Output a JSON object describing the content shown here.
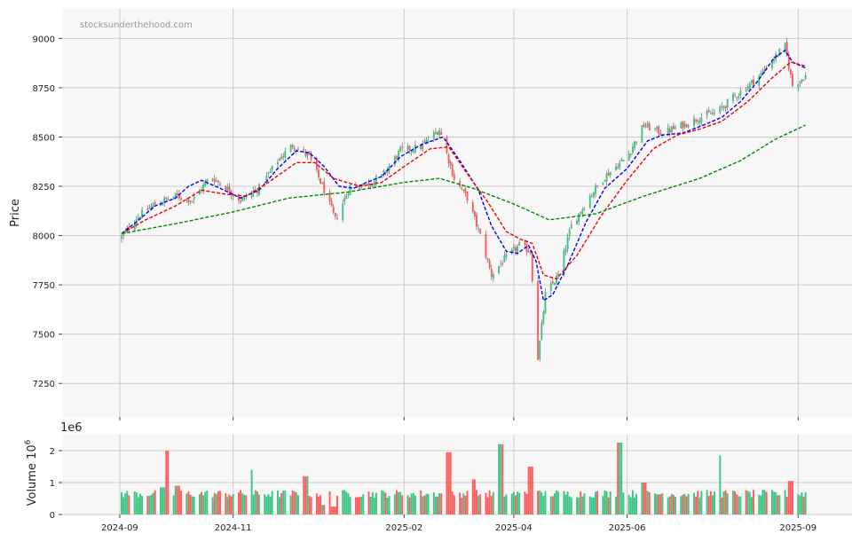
{
  "watermark": "stocksunderthehood.com",
  "colors": {
    "up": "#3cc483",
    "down": "#ff5a5a",
    "ma_fast": "#0000ee",
    "ma_mid": "#ee0000",
    "ma_slow": "#008800",
    "panel_bg": "#f7f7f7",
    "grid": "#cccccc"
  },
  "chart_data": [
    {
      "type": "line",
      "title": "",
      "ylabel": "Price",
      "ylim": [
        7080,
        9150
      ],
      "yticks": [
        9000,
        8750,
        8500,
        8250,
        8000,
        7750,
        7500,
        7250
      ],
      "x_tick_labels": [
        "2024-09",
        "2024-11",
        "2025-02",
        "2025-04",
        "2025-06",
        "2025-09"
      ],
      "x_range": [
        "2024-08-01",
        "2025-09-30"
      ],
      "grid": true,
      "candles": {
        "start_date": "2024-09-02",
        "end_date": "2025-09-05",
        "close_path": [
          [
            "2024-09-02",
            7990
          ],
          [
            "2024-09-10",
            8090
          ],
          [
            "2024-09-20",
            8160
          ],
          [
            "2024-10-01",
            8200
          ],
          [
            "2024-10-10",
            8180
          ],
          [
            "2024-10-20",
            8300
          ],
          [
            "2024-10-30",
            8230
          ],
          [
            "2024-11-05",
            8180
          ],
          [
            "2024-11-15",
            8240
          ],
          [
            "2024-11-25",
            8380
          ],
          [
            "2024-12-03",
            8460
          ],
          [
            "2024-12-12",
            8400
          ],
          [
            "2024-12-20",
            8230
          ],
          [
            "2024-12-26",
            8080
          ],
          [
            "2025-01-03",
            8250
          ],
          [
            "2025-01-12",
            8260
          ],
          [
            "2025-01-20",
            8300
          ],
          [
            "2025-01-30",
            8430
          ],
          [
            "2025-02-10",
            8450
          ],
          [
            "2025-02-20",
            8540
          ],
          [
            "2025-02-28",
            8290
          ],
          [
            "2025-03-07",
            8190
          ],
          [
            "2025-03-14",
            8000
          ],
          [
            "2025-03-20",
            7800
          ],
          [
            "2025-03-27",
            7880
          ],
          [
            "2025-04-04",
            7950
          ],
          [
            "2025-04-10",
            7920
          ],
          [
            "2025-04-14",
            7380
          ],
          [
            "2025-04-18",
            7700
          ],
          [
            "2025-04-25",
            7800
          ],
          [
            "2025-05-02",
            8050
          ],
          [
            "2025-05-12",
            8200
          ],
          [
            "2025-05-20",
            8300
          ],
          [
            "2025-06-01",
            8400
          ],
          [
            "2025-06-10",
            8560
          ],
          [
            "2025-06-20",
            8520
          ],
          [
            "2025-07-01",
            8560
          ],
          [
            "2025-07-10",
            8600
          ],
          [
            "2025-07-20",
            8630
          ],
          [
            "2025-07-28",
            8700
          ],
          [
            "2025-08-05",
            8760
          ],
          [
            "2025-08-12",
            8820
          ],
          [
            "2025-08-19",
            8900
          ],
          [
            "2025-08-25",
            8960
          ],
          [
            "2025-08-29",
            8760
          ],
          [
            "2025-09-05",
            8810
          ]
        ]
      },
      "series": [
        {
          "key": "ma_fast",
          "style": "dashed",
          "points": [
            [
              "2024-09-02",
              8010
            ],
            [
              "2024-09-10",
              8070
            ],
            [
              "2024-09-20",
              8150
            ],
            [
              "2024-10-01",
              8190
            ],
            [
              "2024-10-08",
              8250
            ],
            [
              "2024-10-15",
              8280
            ],
            [
              "2024-10-25",
              8240
            ],
            [
              "2024-11-05",
              8190
            ],
            [
              "2024-11-15",
              8230
            ],
            [
              "2024-11-25",
              8340
            ],
            [
              "2024-12-05",
              8430
            ],
            [
              "2024-12-12",
              8420
            ],
            [
              "2024-12-20",
              8350
            ],
            [
              "2024-12-28",
              8250
            ],
            [
              "2025-01-05",
              8240
            ],
            [
              "2025-01-12",
              8270
            ],
            [
              "2025-01-20",
              8300
            ],
            [
              "2025-01-30",
              8400
            ],
            [
              "2025-02-10",
              8460
            ],
            [
              "2025-02-22",
              8500
            ],
            [
              "2025-03-03",
              8380
            ],
            [
              "2025-03-13",
              8230
            ],
            [
              "2025-03-20",
              8050
            ],
            [
              "2025-03-28",
              7920
            ],
            [
              "2025-04-03",
              7910
            ],
            [
              "2025-04-09",
              7950
            ],
            [
              "2025-04-13",
              7870
            ],
            [
              "2025-04-17",
              7670
            ],
            [
              "2025-04-22",
              7700
            ],
            [
              "2025-04-30",
              7850
            ],
            [
              "2025-05-10",
              8070
            ],
            [
              "2025-05-20",
              8240
            ],
            [
              "2025-06-01",
              8340
            ],
            [
              "2025-06-12",
              8480
            ],
            [
              "2025-06-20",
              8510
            ],
            [
              "2025-07-01",
              8520
            ],
            [
              "2025-07-12",
              8560
            ],
            [
              "2025-07-22",
              8600
            ],
            [
              "2025-08-01",
              8680
            ],
            [
              "2025-08-10",
              8780
            ],
            [
              "2025-08-19",
              8900
            ],
            [
              "2025-08-25",
              8940
            ],
            [
              "2025-08-29",
              8880
            ],
            [
              "2025-09-05",
              8850
            ]
          ]
        },
        {
          "key": "ma_mid",
          "style": "dashed",
          "points": [
            [
              "2024-09-02",
              8010
            ],
            [
              "2024-09-15",
              8080
            ],
            [
              "2024-10-01",
              8150
            ],
            [
              "2024-10-15",
              8230
            ],
            [
              "2024-10-28",
              8210
            ],
            [
              "2024-11-08",
              8200
            ],
            [
              "2024-11-20",
              8270
            ],
            [
              "2024-12-05",
              8370
            ],
            [
              "2024-12-15",
              8370
            ],
            [
              "2024-12-25",
              8290
            ],
            [
              "2025-01-08",
              8250
            ],
            [
              "2025-01-20",
              8270
            ],
            [
              "2025-02-01",
              8350
            ],
            [
              "2025-02-15",
              8440
            ],
            [
              "2025-02-25",
              8450
            ],
            [
              "2025-03-08",
              8300
            ],
            [
              "2025-03-18",
              8170
            ],
            [
              "2025-03-28",
              8020
            ],
            [
              "2025-04-05",
              7980
            ],
            [
              "2025-04-11",
              7960
            ],
            [
              "2025-04-17",
              7800
            ],
            [
              "2025-04-24",
              7780
            ],
            [
              "2025-05-05",
              7900
            ],
            [
              "2025-05-18",
              8100
            ],
            [
              "2025-06-01",
              8280
            ],
            [
              "2025-06-15",
              8440
            ],
            [
              "2025-06-28",
              8510
            ],
            [
              "2025-07-10",
              8540
            ],
            [
              "2025-07-22",
              8580
            ],
            [
              "2025-08-05",
              8680
            ],
            [
              "2025-08-18",
              8800
            ],
            [
              "2025-08-28",
              8880
            ],
            [
              "2025-09-05",
              8860
            ]
          ]
        },
        {
          "key": "ma_slow",
          "style": "dashed",
          "points": [
            [
              "2024-09-02",
              8010
            ],
            [
              "2024-10-01",
              8060
            ],
            [
              "2024-11-01",
              8120
            ],
            [
              "2024-12-01",
              8190
            ],
            [
              "2025-01-01",
              8220
            ],
            [
              "2025-02-01",
              8270
            ],
            [
              "2025-02-20",
              8290
            ],
            [
              "2025-03-10",
              8240
            ],
            [
              "2025-04-01",
              8160
            ],
            [
              "2025-04-20",
              8080
            ],
            [
              "2025-05-15",
              8110
            ],
            [
              "2025-06-10",
              8200
            ],
            [
              "2025-07-10",
              8290
            ],
            [
              "2025-08-01",
              8380
            ],
            [
              "2025-08-20",
              8490
            ],
            [
              "2025-09-05",
              8560
            ]
          ]
        }
      ]
    },
    {
      "type": "bar",
      "title": "",
      "ylabel": "Volume",
      "ylabel_multiplier": "10",
      "ylabel_exponent": "6",
      "offset_text": "1e6",
      "ylim": [
        0,
        2.5
      ],
      "yticks": [
        0,
        1,
        2
      ],
      "x_tick_labels": [
        "2024-09",
        "2024-11",
        "2025-02",
        "2025-04",
        "2025-06",
        "2025-09"
      ],
      "baseline": 0.65,
      "spikes": [
        [
          "2024-09-26",
          2.0
        ],
        [
          "2024-09-24",
          0.85
        ],
        [
          "2024-10-02",
          0.9
        ],
        [
          "2024-11-10",
          1.4
        ],
        [
          "2024-12-10",
          1.2
        ],
        [
          "2025-02-25",
          1.95
        ],
        [
          "2025-03-10",
          1.1
        ],
        [
          "2025-03-25",
          2.2
        ],
        [
          "2025-04-10",
          1.5
        ],
        [
          "2025-05-28",
          2.25
        ],
        [
          "2025-07-20",
          1.85
        ],
        [
          "2025-06-10",
          1.0
        ],
        [
          "2025-08-28",
          1.05
        ],
        [
          "2024-12-20",
          0.3
        ],
        [
          "2024-12-25",
          0.25
        ]
      ]
    }
  ]
}
